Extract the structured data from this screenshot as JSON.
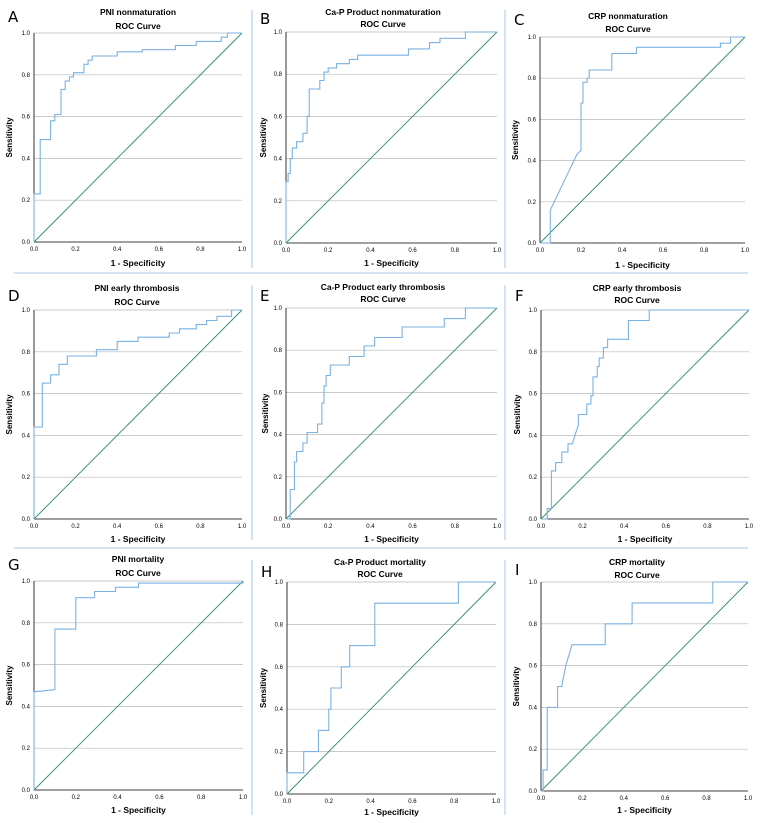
{
  "colors": {
    "roc_curve": "#79b2e3",
    "reference_line": "#2e8b6e",
    "gridline": "#b8b8b8",
    "separator": "#a8c8e8"
  },
  "chart_data": [
    {
      "type": "line",
      "letter": "A",
      "title": "PNI nonmaturation",
      "subtitle": "ROC Curve",
      "xlabel": "1 - Specificity",
      "ylabel": "Sensitivity",
      "xlim": [
        0,
        1
      ],
      "ylim": [
        0,
        1
      ],
      "grid": "horizontal",
      "x_ticks": [
        "0.0",
        "0.2",
        "0.4",
        "0.6",
        "0.8",
        "1.0"
      ],
      "y_ticks": [
        "0.0",
        "0.2",
        "0.4",
        "0.6",
        "0.8",
        "1.0"
      ],
      "reference_line": [
        [
          0,
          0
        ],
        [
          1,
          1
        ]
      ],
      "roc_points": [
        [
          0,
          0
        ],
        [
          0,
          0.23
        ],
        [
          0.03,
          0.23
        ],
        [
          0.03,
          0.49
        ],
        [
          0.08,
          0.49
        ],
        [
          0.08,
          0.58
        ],
        [
          0.1,
          0.58
        ],
        [
          0.1,
          0.61
        ],
        [
          0.13,
          0.61
        ],
        [
          0.13,
          0.73
        ],
        [
          0.15,
          0.73
        ],
        [
          0.15,
          0.77
        ],
        [
          0.17,
          0.77
        ],
        [
          0.17,
          0.79
        ],
        [
          0.19,
          0.79
        ],
        [
          0.19,
          0.81
        ],
        [
          0.24,
          0.81
        ],
        [
          0.24,
          0.85
        ],
        [
          0.26,
          0.85
        ],
        [
          0.26,
          0.87
        ],
        [
          0.28,
          0.87
        ],
        [
          0.28,
          0.89
        ],
        [
          0.4,
          0.89
        ],
        [
          0.4,
          0.91
        ],
        [
          0.52,
          0.91
        ],
        [
          0.52,
          0.92
        ],
        [
          0.68,
          0.92
        ],
        [
          0.68,
          0.94
        ],
        [
          0.78,
          0.94
        ],
        [
          0.78,
          0.96
        ],
        [
          0.9,
          0.96
        ],
        [
          0.9,
          0.98
        ],
        [
          0.93,
          0.98
        ],
        [
          0.93,
          1
        ],
        [
          1,
          1
        ]
      ]
    },
    {
      "type": "line",
      "letter": "B",
      "title": "Ca-P Product nonmaturation",
      "subtitle": "ROC Curve",
      "xlabel": "1 - Specificity",
      "ylabel": "Sensitivity",
      "xlim": [
        0,
        1
      ],
      "ylim": [
        0,
        1
      ],
      "grid": "horizontal",
      "x_ticks": [
        "0.0",
        "0.2",
        "0.4",
        "0.6",
        "0.8",
        "1.0"
      ],
      "y_ticks": [
        "0.0",
        "0.2",
        "0.4",
        "0.6",
        "0.8",
        "1.0"
      ],
      "reference_line": [
        [
          0,
          0
        ],
        [
          1,
          1
        ]
      ],
      "roc_points": [
        [
          0,
          0
        ],
        [
          0,
          0.29
        ],
        [
          0.01,
          0.29
        ],
        [
          0.01,
          0.33
        ],
        [
          0.02,
          0.33
        ],
        [
          0.02,
          0.4
        ],
        [
          0.03,
          0.4
        ],
        [
          0.03,
          0.45
        ],
        [
          0.05,
          0.45
        ],
        [
          0.05,
          0.48
        ],
        [
          0.08,
          0.48
        ],
        [
          0.08,
          0.52
        ],
        [
          0.1,
          0.52
        ],
        [
          0.1,
          0.6
        ],
        [
          0.11,
          0.6
        ],
        [
          0.11,
          0.73
        ],
        [
          0.16,
          0.73
        ],
        [
          0.16,
          0.77
        ],
        [
          0.18,
          0.77
        ],
        [
          0.18,
          0.81
        ],
        [
          0.2,
          0.81
        ],
        [
          0.2,
          0.83
        ],
        [
          0.24,
          0.83
        ],
        [
          0.24,
          0.85
        ],
        [
          0.3,
          0.85
        ],
        [
          0.3,
          0.87
        ],
        [
          0.34,
          0.87
        ],
        [
          0.34,
          0.89
        ],
        [
          0.58,
          0.89
        ],
        [
          0.58,
          0.92
        ],
        [
          0.68,
          0.92
        ],
        [
          0.68,
          0.95
        ],
        [
          0.73,
          0.95
        ],
        [
          0.73,
          0.97
        ],
        [
          0.85,
          0.97
        ],
        [
          0.85,
          1
        ],
        [
          1,
          1
        ]
      ]
    },
    {
      "type": "line",
      "letter": "C",
      "title": "CRP nonmaturation",
      "subtitle": "ROC Curve",
      "xlabel": "1 - Specificity",
      "ylabel": "Sensitivity",
      "xlim": [
        0,
        1
      ],
      "ylim": [
        0,
        1
      ],
      "grid": "horizontal",
      "x_ticks": [
        "0.0",
        "0.2",
        "0.4",
        "0.6",
        "0.8",
        "1.0"
      ],
      "y_ticks": [
        "0.0",
        "0.2",
        "0.4",
        "0.6",
        "0.8",
        "1.0"
      ],
      "reference_line": [
        [
          0,
          0
        ],
        [
          1,
          1
        ]
      ],
      "roc_points": [
        [
          0,
          0
        ],
        [
          0.05,
          0
        ],
        [
          0.05,
          0.16
        ],
        [
          0.18,
          0.43
        ],
        [
          0.2,
          0.45
        ],
        [
          0.2,
          0.68
        ],
        [
          0.21,
          0.68
        ],
        [
          0.21,
          0.78
        ],
        [
          0.23,
          0.78
        ],
        [
          0.23,
          0.8
        ],
        [
          0.24,
          0.8
        ],
        [
          0.24,
          0.84
        ],
        [
          0.35,
          0.84
        ],
        [
          0.35,
          0.92
        ],
        [
          0.47,
          0.92
        ],
        [
          0.47,
          0.95
        ],
        [
          0.88,
          0.95
        ],
        [
          0.88,
          0.97
        ],
        [
          0.93,
          0.97
        ],
        [
          0.93,
          1
        ],
        [
          1,
          1
        ]
      ]
    },
    {
      "type": "line",
      "letter": "D",
      "title": "PNI early thrombosis",
      "subtitle": "ROC Curve",
      "xlabel": "1 - Specificity",
      "ylabel": "Sensitivity",
      "xlim": [
        0,
        1
      ],
      "ylim": [
        0,
        1
      ],
      "grid": "horizontal",
      "x_ticks": [
        "0.0",
        "0.2",
        "0.4",
        "0.6",
        "0.8",
        "1.0"
      ],
      "y_ticks": [
        "0.0",
        "0.2",
        "0.4",
        "0.6",
        "0.8",
        "1.0"
      ],
      "reference_line": [
        [
          0,
          0
        ],
        [
          1,
          1
        ]
      ],
      "roc_points": [
        [
          0,
          0
        ],
        [
          0,
          0.44
        ],
        [
          0.04,
          0.44
        ],
        [
          0.04,
          0.65
        ],
        [
          0.08,
          0.65
        ],
        [
          0.08,
          0.69
        ],
        [
          0.12,
          0.69
        ],
        [
          0.12,
          0.74
        ],
        [
          0.16,
          0.74
        ],
        [
          0.16,
          0.78
        ],
        [
          0.3,
          0.78
        ],
        [
          0.3,
          0.81
        ],
        [
          0.4,
          0.81
        ],
        [
          0.4,
          0.85
        ],
        [
          0.5,
          0.85
        ],
        [
          0.5,
          0.87
        ],
        [
          0.65,
          0.87
        ],
        [
          0.65,
          0.89
        ],
        [
          0.7,
          0.89
        ],
        [
          0.7,
          0.91
        ],
        [
          0.78,
          0.91
        ],
        [
          0.78,
          0.93
        ],
        [
          0.83,
          0.93
        ],
        [
          0.83,
          0.95
        ],
        [
          0.88,
          0.95
        ],
        [
          0.88,
          0.97
        ],
        [
          0.95,
          0.97
        ],
        [
          0.95,
          1
        ],
        [
          1,
          1
        ]
      ]
    },
    {
      "type": "line",
      "letter": "E",
      "title": "Ca-P Product early thrombosis",
      "subtitle": "ROC Curve",
      "xlabel": "1 - Specificity",
      "ylabel": "Sensitivity",
      "xlim": [
        0,
        1
      ],
      "ylim": [
        0,
        1
      ],
      "grid": "horizontal",
      "x_ticks": [
        "0.0",
        "0.2",
        "0.4",
        "0.6",
        "0.8",
        "1.0"
      ],
      "y_ticks": [
        "0.0",
        "0.2",
        "0.4",
        "0.6",
        "0.8",
        "1.0"
      ],
      "reference_line": [
        [
          0,
          0
        ],
        [
          1,
          1
        ]
      ],
      "roc_points": [
        [
          0,
          0
        ],
        [
          0.02,
          0
        ],
        [
          0.02,
          0.14
        ],
        [
          0.04,
          0.14
        ],
        [
          0.04,
          0.27
        ],
        [
          0.05,
          0.27
        ],
        [
          0.05,
          0.32
        ],
        [
          0.08,
          0.32
        ],
        [
          0.08,
          0.36
        ],
        [
          0.1,
          0.36
        ],
        [
          0.1,
          0.41
        ],
        [
          0.15,
          0.41
        ],
        [
          0.15,
          0.45
        ],
        [
          0.17,
          0.45
        ],
        [
          0.17,
          0.55
        ],
        [
          0.18,
          0.55
        ],
        [
          0.18,
          0.63
        ],
        [
          0.19,
          0.63
        ],
        [
          0.19,
          0.68
        ],
        [
          0.21,
          0.68
        ],
        [
          0.21,
          0.73
        ],
        [
          0.3,
          0.73
        ],
        [
          0.3,
          0.77
        ],
        [
          0.37,
          0.77
        ],
        [
          0.37,
          0.82
        ],
        [
          0.42,
          0.82
        ],
        [
          0.42,
          0.86
        ],
        [
          0.55,
          0.86
        ],
        [
          0.55,
          0.91
        ],
        [
          0.75,
          0.91
        ],
        [
          0.75,
          0.95
        ],
        [
          0.85,
          0.95
        ],
        [
          0.85,
          1
        ],
        [
          1,
          1
        ]
      ]
    },
    {
      "type": "line",
      "letter": "F",
      "title": "CRP early thrombosis",
      "subtitle": "ROC Curve",
      "xlabel": "1 - Specificity",
      "ylabel": "Sensitivity",
      "xlim": [
        0,
        1
      ],
      "ylim": [
        0,
        1
      ],
      "grid": "horizontal",
      "x_ticks": [
        "0.0",
        "0.2",
        "0.4",
        "0.6",
        "0.8",
        "1.0"
      ],
      "y_ticks": [
        "0.0",
        "0.2",
        "0.4",
        "0.6",
        "0.8",
        "1.0"
      ],
      "reference_line": [
        [
          0,
          0
        ],
        [
          1,
          1
        ]
      ],
      "roc_points": [
        [
          0,
          0
        ],
        [
          0.03,
          0
        ],
        [
          0.03,
          0.05
        ],
        [
          0.05,
          0.05
        ],
        [
          0.05,
          0.23
        ],
        [
          0.07,
          0.23
        ],
        [
          0.07,
          0.27
        ],
        [
          0.1,
          0.27
        ],
        [
          0.1,
          0.32
        ],
        [
          0.13,
          0.32
        ],
        [
          0.13,
          0.36
        ],
        [
          0.15,
          0.36
        ],
        [
          0.18,
          0.45
        ],
        [
          0.18,
          0.5
        ],
        [
          0.22,
          0.5
        ],
        [
          0.22,
          0.55
        ],
        [
          0.24,
          0.55
        ],
        [
          0.24,
          0.59
        ],
        [
          0.25,
          0.59
        ],
        [
          0.25,
          0.68
        ],
        [
          0.27,
          0.68
        ],
        [
          0.27,
          0.73
        ],
        [
          0.28,
          0.73
        ],
        [
          0.28,
          0.77
        ],
        [
          0.3,
          0.77
        ],
        [
          0.3,
          0.82
        ],
        [
          0.32,
          0.82
        ],
        [
          0.32,
          0.86
        ],
        [
          0.42,
          0.86
        ],
        [
          0.42,
          0.95
        ],
        [
          0.52,
          0.95
        ],
        [
          0.52,
          1
        ],
        [
          1,
          1
        ]
      ]
    },
    {
      "type": "line",
      "letter": "G",
      "title": "PNI mortality",
      "subtitle": "ROC Curve",
      "xlabel": "1 - Specificity",
      "ylabel": "Sensitivity",
      "xlim": [
        0,
        1
      ],
      "ylim": [
        0,
        1
      ],
      "grid": "horizontal",
      "x_ticks": [
        "0.0",
        "0.2",
        "0.4",
        "0.6",
        "0.8",
        "1.0"
      ],
      "y_ticks": [
        "0.0",
        "0.2",
        "0.4",
        "0.6",
        "0.8",
        "1.0"
      ],
      "reference_line": [
        [
          0,
          0
        ],
        [
          1,
          1
        ]
      ],
      "roc_points": [
        [
          0,
          0
        ],
        [
          0,
          0.47
        ],
        [
          0.1,
          0.48
        ],
        [
          0.1,
          0.77
        ],
        [
          0.2,
          0.77
        ],
        [
          0.2,
          0.92
        ],
        [
          0.29,
          0.92
        ],
        [
          0.29,
          0.95
        ],
        [
          0.39,
          0.95
        ],
        [
          0.39,
          0.97
        ],
        [
          0.5,
          0.97
        ],
        [
          0.5,
          0.99
        ],
        [
          1,
          0.99
        ],
        [
          1,
          1
        ]
      ]
    },
    {
      "type": "line",
      "letter": "H",
      "title": "Ca-P Product mortality",
      "subtitle": "ROC Curve",
      "xlabel": "1 - Specificity",
      "ylabel": "Sensitivity",
      "xlim": [
        0,
        1
      ],
      "ylim": [
        0,
        1
      ],
      "grid": "horizontal",
      "x_ticks": [
        "0.0",
        "0.2",
        "0.4",
        "0.6",
        "0.8",
        "1.0"
      ],
      "y_ticks": [
        "0.0",
        "0.2",
        "0.4",
        "0.6",
        "0.8",
        "1.0"
      ],
      "reference_line": [
        [
          0,
          0
        ],
        [
          1,
          1
        ]
      ],
      "roc_points": [
        [
          0,
          0
        ],
        [
          0,
          0.1
        ],
        [
          0.08,
          0.1
        ],
        [
          0.08,
          0.2
        ],
        [
          0.15,
          0.2
        ],
        [
          0.15,
          0.3
        ],
        [
          0.2,
          0.3
        ],
        [
          0.2,
          0.4
        ],
        [
          0.21,
          0.4
        ],
        [
          0.21,
          0.5
        ],
        [
          0.26,
          0.5
        ],
        [
          0.26,
          0.6
        ],
        [
          0.3,
          0.6
        ],
        [
          0.3,
          0.7
        ],
        [
          0.42,
          0.7
        ],
        [
          0.42,
          0.9
        ],
        [
          0.82,
          0.9
        ],
        [
          0.82,
          1
        ],
        [
          1,
          1
        ]
      ]
    },
    {
      "type": "line",
      "letter": "I",
      "title": "CRP mortality",
      "subtitle": "ROC Curve",
      "xlabel": "1 - Specificity",
      "ylabel": "Sensitivity",
      "xlim": [
        0,
        1
      ],
      "ylim": [
        0,
        1
      ],
      "grid": "horizontal",
      "x_ticks": [
        "0.0",
        "0.2",
        "0.4",
        "0.6",
        "0.8",
        "1.0"
      ],
      "y_ticks": [
        "0.0",
        "0.2",
        "0.4",
        "0.6",
        "0.8",
        "1.0"
      ],
      "reference_line": [
        [
          0,
          0
        ],
        [
          1,
          1
        ]
      ],
      "roc_points": [
        [
          0,
          0
        ],
        [
          0.01,
          0
        ],
        [
          0.01,
          0.1
        ],
        [
          0.03,
          0.1
        ],
        [
          0.03,
          0.4
        ],
        [
          0.08,
          0.4
        ],
        [
          0.08,
          0.5
        ],
        [
          0.1,
          0.5
        ],
        [
          0.12,
          0.6
        ],
        [
          0.15,
          0.7
        ],
        [
          0.31,
          0.7
        ],
        [
          0.31,
          0.8
        ],
        [
          0.44,
          0.8
        ],
        [
          0.44,
          0.9
        ],
        [
          0.83,
          0.9
        ],
        [
          0.83,
          1
        ],
        [
          1,
          1
        ]
      ]
    }
  ]
}
